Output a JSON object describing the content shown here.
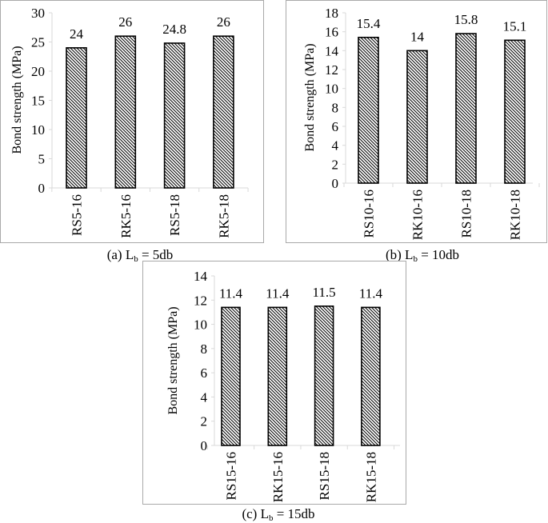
{
  "figure": {
    "captions": [
      {
        "prefix": "(a) L",
        "sub": "b",
        "suffix": " = 5db"
      },
      {
        "prefix": "(b) L",
        "sub": "b",
        "suffix": " = 10db"
      },
      {
        "prefix": "(c) L",
        "sub": "b",
        "suffix": " = 15db"
      }
    ]
  },
  "chart_data": [
    {
      "type": "bar",
      "title": "(a) Lb = 5db",
      "xlabel": "",
      "ylabel": "Bond strength (MPa)",
      "categories": [
        "RS5-16",
        "RK5-16",
        "RS5-18",
        "RK5-18"
      ],
      "values": [
        24,
        26,
        24.8,
        26
      ],
      "data_labels": [
        "24",
        "26",
        "24.8",
        "26"
      ],
      "ylim": [
        0,
        30
      ],
      "yticks": [
        0,
        5,
        10,
        15,
        20,
        25,
        30
      ],
      "grid": false,
      "bar_fill": "diagonal-hatch",
      "legend": null
    },
    {
      "type": "bar",
      "title": "(b) Lb = 10db",
      "xlabel": "",
      "ylabel": "Bond strength (MPa)",
      "categories": [
        "RS10-16",
        "RK10-16",
        "RS10-18",
        "RK10-18"
      ],
      "values": [
        15.4,
        14,
        15.8,
        15.1
      ],
      "data_labels": [
        "15.4",
        "14",
        "15.8",
        "15.1"
      ],
      "ylim": [
        0,
        18
      ],
      "yticks": [
        0,
        2,
        4,
        6,
        8,
        10,
        12,
        14,
        16,
        18
      ],
      "grid": false,
      "bar_fill": "diagonal-hatch",
      "legend": null
    },
    {
      "type": "bar",
      "title": "(c) Lb = 15db",
      "xlabel": "",
      "ylabel": "Bond strength (MPa)",
      "categories": [
        "RS15-16",
        "RK15-16",
        "RS15-18",
        "RK15-18"
      ],
      "values": [
        11.4,
        11.4,
        11.5,
        11.4
      ],
      "data_labels": [
        "11.4",
        "11.4",
        "11.5",
        "11.4"
      ],
      "ylim": [
        0,
        14
      ],
      "yticks": [
        0,
        2,
        4,
        6,
        8,
        10,
        12,
        14
      ],
      "grid": false,
      "bar_fill": "diagonal-hatch",
      "legend": null
    }
  ],
  "colors": {
    "frame": "#a9a9a9",
    "axis": "#d9d9d9",
    "bar_outline": "#000000",
    "hatch": "#000000",
    "background": "#ffffff"
  }
}
